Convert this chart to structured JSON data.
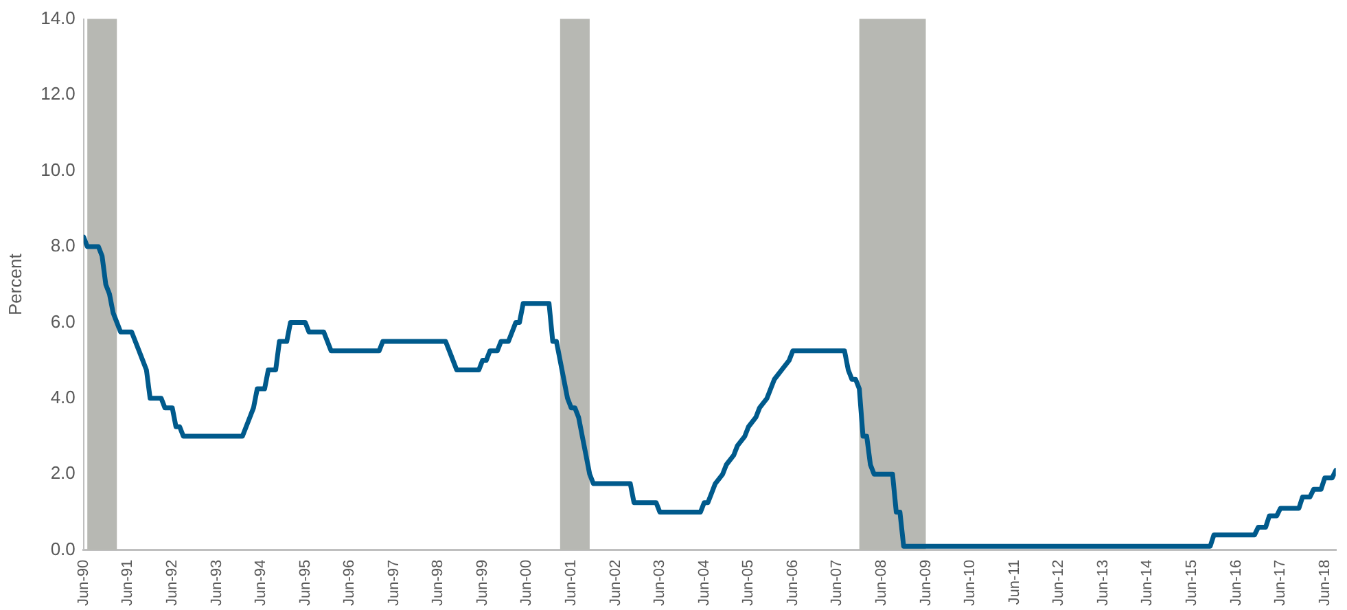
{
  "chart_data": {
    "type": "line",
    "ylabel": "Percent",
    "x": [
      "1990-06",
      "1990-07",
      "1990-10",
      "1990-11",
      "1990-12",
      "1991-01",
      "1991-02",
      "1991-03",
      "1991-04",
      "1991-07",
      "1991-08",
      "1991-09",
      "1991-10",
      "1991-11",
      "1991-12",
      "1992-03",
      "1992-04",
      "1992-06",
      "1992-07",
      "1992-08",
      "1992-09",
      "1994-01",
      "1994-02",
      "1994-03",
      "1994-04",
      "1994-05",
      "1994-07",
      "1994-08",
      "1994-10",
      "1994-11",
      "1995-01",
      "1995-02",
      "1995-06",
      "1995-07",
      "1995-11",
      "1995-12",
      "1996-01",
      "1997-02",
      "1997-03",
      "1998-08",
      "1998-09",
      "1998-10",
      "1998-11",
      "1999-05",
      "1999-06",
      "1999-07",
      "1999-08",
      "1999-10",
      "1999-11",
      "2000-01",
      "2000-02",
      "2000-03",
      "2000-04",
      "2000-05",
      "2000-12",
      "2001-01",
      "2001-02",
      "2001-03",
      "2001-04",
      "2001-05",
      "2001-06",
      "2001-07",
      "2001-08",
      "2001-09",
      "2001-10",
      "2001-11",
      "2001-12",
      "2002-10",
      "2002-11",
      "2003-05",
      "2003-06",
      "2004-05",
      "2004-06",
      "2004-07",
      "2004-08",
      "2004-09",
      "2004-11",
      "2004-12",
      "2005-02",
      "2005-03",
      "2005-05",
      "2005-06",
      "2005-08",
      "2005-09",
      "2005-11",
      "2005-12",
      "2006-01",
      "2006-03",
      "2006-05",
      "2006-06",
      "2007-08",
      "2007-09",
      "2007-10",
      "2007-11",
      "2007-12",
      "2008-01",
      "2008-02",
      "2008-03",
      "2008-04",
      "2008-09",
      "2008-10",
      "2008-11",
      "2008-12",
      "2015-11",
      "2015-12",
      "2016-11",
      "2016-12",
      "2017-02",
      "2017-03",
      "2017-05",
      "2017-06",
      "2017-11",
      "2017-12",
      "2018-02",
      "2018-03",
      "2018-05",
      "2018-06",
      "2018-08",
      "2018-09"
    ],
    "series": [
      {
        "color": "#005a8c",
        "values": [
          8.25,
          8.0,
          8.0,
          7.75,
          7.0,
          6.75,
          6.25,
          6.0,
          5.75,
          5.75,
          5.5,
          5.25,
          5.0,
          4.75,
          4.0,
          4.0,
          3.75,
          3.75,
          3.25,
          3.25,
          3.0,
          3.0,
          3.25,
          3.5,
          3.75,
          4.25,
          4.25,
          4.75,
          4.75,
          5.5,
          5.5,
          6.0,
          6.0,
          5.75,
          5.75,
          5.5,
          5.25,
          5.25,
          5.5,
          5.5,
          5.25,
          5.0,
          4.75,
          4.75,
          5.0,
          5.0,
          5.25,
          5.25,
          5.5,
          5.5,
          5.75,
          6.0,
          6.0,
          6.5,
          6.5,
          5.5,
          5.5,
          5.0,
          4.5,
          4.0,
          3.75,
          3.75,
          3.5,
          3.0,
          2.5,
          2.0,
          1.75,
          1.75,
          1.25,
          1.25,
          1.0,
          1.0,
          1.25,
          1.25,
          1.5,
          1.75,
          2.0,
          2.25,
          2.5,
          2.75,
          3.0,
          3.25,
          3.5,
          3.75,
          4.0,
          4.25,
          4.5,
          4.75,
          5.0,
          5.25,
          5.25,
          4.75,
          4.5,
          4.5,
          4.25,
          3.0,
          3.0,
          2.25,
          2.0,
          2.0,
          1.0,
          1.0,
          0.1,
          0.1,
          0.4,
          0.4,
          0.6,
          0.6,
          0.9,
          0.9,
          1.1,
          1.1,
          1.4,
          1.4,
          1.6,
          1.6,
          1.9,
          1.9,
          2.1
        ]
      }
    ],
    "xlim": [
      "1990-06",
      "2018-09"
    ],
    "xticks": [
      {
        "value": "1990-06",
        "label": "Jun-90"
      },
      {
        "value": "1991-06",
        "label": "Jun-91"
      },
      {
        "value": "1992-06",
        "label": "Jun-92"
      },
      {
        "value": "1993-06",
        "label": "Jun-93"
      },
      {
        "value": "1994-06",
        "label": "Jun-94"
      },
      {
        "value": "1995-06",
        "label": "Jun-95"
      },
      {
        "value": "1996-06",
        "label": "Jun-96"
      },
      {
        "value": "1997-06",
        "label": "Jun-97"
      },
      {
        "value": "1998-06",
        "label": "Jun-98"
      },
      {
        "value": "1999-06",
        "label": "Jun-99"
      },
      {
        "value": "2000-06",
        "label": "Jun-00"
      },
      {
        "value": "2001-06",
        "label": "Jun-01"
      },
      {
        "value": "2002-06",
        "label": "Jun-02"
      },
      {
        "value": "2003-06",
        "label": "Jun-03"
      },
      {
        "value": "2004-06",
        "label": "Jun-04"
      },
      {
        "value": "2005-06",
        "label": "Jun-05"
      },
      {
        "value": "2006-06",
        "label": "Jun-06"
      },
      {
        "value": "2007-06",
        "label": "Jun-07"
      },
      {
        "value": "2008-06",
        "label": "Jun-08"
      },
      {
        "value": "2009-06",
        "label": "Jun-09"
      },
      {
        "value": "2010-06",
        "label": "Jun-10"
      },
      {
        "value": "2011-06",
        "label": "Jun-11"
      },
      {
        "value": "2012-06",
        "label": "Jun-12"
      },
      {
        "value": "2013-06",
        "label": "Jun-13"
      },
      {
        "value": "2014-06",
        "label": "Jun-14"
      },
      {
        "value": "2015-06",
        "label": "Jun-15"
      },
      {
        "value": "2016-06",
        "label": "Jun-16"
      },
      {
        "value": "2017-06",
        "label": "Jun-17"
      },
      {
        "value": "2018-06",
        "label": "Jun-18"
      }
    ],
    "ylim": [
      0,
      14
    ],
    "yticks": [
      {
        "value": 0,
        "label": "0.0"
      },
      {
        "value": 2,
        "label": "2.0"
      },
      {
        "value": 4,
        "label": "4.0"
      },
      {
        "value": 6,
        "label": "6.0"
      },
      {
        "value": 8,
        "label": "8.0"
      },
      {
        "value": 10,
        "label": "10.0"
      },
      {
        "value": 12,
        "label": "12.0"
      },
      {
        "value": 14,
        "label": "14.0"
      }
    ],
    "bands": [
      {
        "axis": "x",
        "from": "1990-07",
        "to": "1991-03",
        "color": "#b7b8b3"
      },
      {
        "axis": "x",
        "from": "2001-03",
        "to": "2001-11",
        "color": "#b7b8b3"
      },
      {
        "axis": "x",
        "from": "2007-12",
        "to": "2009-06",
        "color": "#b7b8b3"
      }
    ],
    "grid": false,
    "legend": false,
    "marker": "none",
    "line_style": "solid"
  }
}
